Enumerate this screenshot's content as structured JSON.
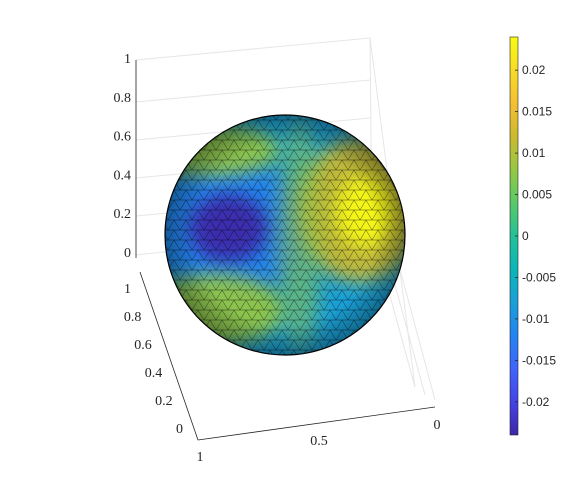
{
  "chart_data": {
    "type": "heatmap",
    "title": "",
    "subtitle": "",
    "surface": "sphere",
    "mesh": "triangulated",
    "axes": {
      "z": {
        "ticks": [
          "0",
          "0.2",
          "0.4",
          "0.6",
          "0.8",
          "1"
        ],
        "lim": [
          0,
          1
        ]
      },
      "y": {
        "ticks": [
          "0",
          "0.2",
          "0.4",
          "0.6",
          "0.8",
          "1"
        ],
        "lim": [
          0,
          1
        ]
      },
      "x": {
        "ticks": [
          "1",
          "0.5",
          "0"
        ],
        "lim": [
          0,
          1
        ]
      }
    },
    "grid": true,
    "colorbar": {
      "location": "right",
      "colormap": "parula",
      "lim": [
        -0.024,
        0.024
      ],
      "ticks": [
        "-0.02",
        "-0.015",
        "-0.01",
        "-0.005",
        "0",
        "0.005",
        "0.01",
        "0.015",
        "0.02"
      ],
      "tick_values": [
        -0.02,
        -0.015,
        -0.01,
        -0.005,
        0,
        0.005,
        0.01,
        0.015,
        0.02
      ]
    },
    "field_features": [
      {
        "kind": "minimum",
        "region": "left-center",
        "value": -0.024
      },
      {
        "kind": "maximum",
        "region": "right-center",
        "value": 0.024
      },
      {
        "kind": "positive band",
        "region": "top-left rim",
        "value": 0.015
      },
      {
        "kind": "positive band",
        "region": "bottom-left",
        "value": 0.015
      }
    ],
    "colors": {
      "parula": [
        "#3e26a8",
        "#4443e6",
        "#3f64fc",
        "#2484f1",
        "#1aa0d7",
        "#0bb6b8",
        "#26c197",
        "#58c969",
        "#96c743",
        "#ccba2f",
        "#f4bf34",
        "#f6dc27",
        "#f9fb15"
      ],
      "axis": "#262626",
      "grid": "#e6e6e6",
      "mesh": "#000000"
    }
  }
}
